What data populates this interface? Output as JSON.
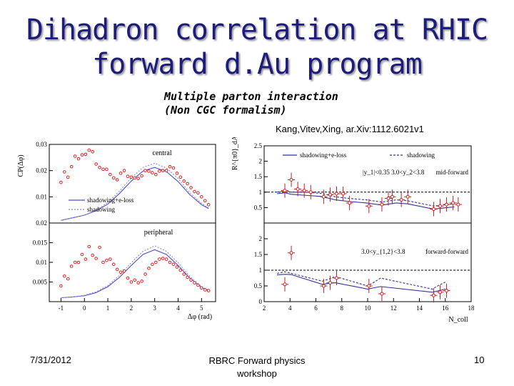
{
  "slide": {
    "title_line1": "Dihadron correlation at RHIC",
    "title_line2": "forward d.Au program",
    "subtitle_line1": "Multiple parton interaction",
    "subtitle_line2": "(Non CGC formalism)",
    "citation": "Kang,Vitev,Xing, ar.Xiv:1112.6021v1",
    "footer_date": "7/31/2012",
    "footer_line1": "RBRC Forward physics",
    "footer_line2": "workshop",
    "page_number": "10"
  },
  "chart_data": [
    {
      "type": "line",
      "ylabel": "CP(Δφ)",
      "xlabel": "Δφ (rad)",
      "x_ticks": [
        "-1",
        "0",
        "1",
        "2",
        "3",
        "4",
        "5"
      ],
      "xlim": [
        -1.5,
        5.6
      ],
      "panels": [
        {
          "label": "central",
          "ylim": [
            0,
            0.03
          ],
          "y_ticks": [
            "0.01",
            "0.02",
            "0.03"
          ],
          "series": [
            {
              "name": "shadowing+e-loss",
              "x": [
                -1.0,
                -0.5,
                0.0,
                0.5,
                1.0,
                1.5,
                2.0,
                2.5,
                3.0,
                3.5,
                4.0,
                4.5,
                5.0,
                5.3
              ],
              "values": [
                0.001,
                0.002,
                0.003,
                0.0047,
                0.0072,
                0.0113,
                0.016,
                0.0198,
                0.0212,
                0.0196,
                0.0158,
                0.0108,
                0.007,
                0.0055
              ]
            },
            {
              "name": "shadowing",
              "x": [
                -1.0,
                -0.5,
                0.0,
                0.5,
                1.0,
                1.5,
                2.0,
                2.5,
                3.0,
                3.5,
                4.0,
                4.5,
                5.0,
                5.3
              ],
              "values": [
                0.001,
                0.002,
                0.003,
                0.005,
                0.0078,
                0.0122,
                0.0172,
                0.0212,
                0.0228,
                0.021,
                0.017,
                0.0115,
                0.0075,
                0.0058
              ]
            },
            {
              "name": "data",
              "x": [
                -1.0,
                -0.85,
                -0.7,
                -0.55,
                -0.4,
                -0.25,
                -0.1,
                0.05,
                0.2,
                0.35,
                0.5,
                0.65,
                0.8,
                0.95,
                1.1,
                1.25,
                1.4,
                1.55,
                1.7,
                1.85,
                2.0,
                2.15,
                2.3,
                2.45,
                2.6,
                2.75,
                2.9,
                3.05,
                3.2,
                3.35,
                3.5,
                3.65,
                3.8,
                3.95,
                4.1,
                4.25,
                4.4,
                4.55,
                4.7,
                4.85,
                5.0,
                5.15,
                5.3
              ],
              "values": [
                0.0155,
                0.0195,
                0.0175,
                0.0215,
                0.0255,
                0.0245,
                0.026,
                0.0262,
                0.0278,
                0.0272,
                0.0225,
                0.0212,
                0.0205,
                0.0205,
                0.0185,
                0.0172,
                0.0165,
                0.019,
                0.02,
                0.0178,
                0.0175,
                0.0172,
                0.017,
                0.018,
                0.02,
                0.0198,
                0.0192,
                0.0185,
                0.0198,
                0.02,
                0.02,
                0.0215,
                0.021,
                0.019,
                0.0175,
                0.016,
                0.015,
                0.0135,
                0.012,
                0.0115,
                0.01,
                0.0085,
                0.007
              ]
            }
          ]
        },
        {
          "label": "peripheral",
          "ylim": [
            0,
            0.02
          ],
          "y_ticks": [
            "0.005",
            "0.01",
            "0.015",
            "0.02"
          ],
          "series": [
            {
              "name": "shadowing+e-loss",
              "x": [
                -1.0,
                -0.5,
                0.0,
                0.5,
                1.0,
                1.5,
                2.0,
                2.5,
                3.0,
                3.5,
                4.0,
                4.5,
                5.0,
                5.3
              ],
              "values": [
                0.001,
                0.0012,
                0.0015,
                0.0023,
                0.0038,
                0.0062,
                0.0092,
                0.012,
                0.0132,
                0.012,
                0.0092,
                0.006,
                0.0036,
                0.0028
              ]
            },
            {
              "name": "shadowing",
              "x": [
                -1.0,
                -0.5,
                0.0,
                0.5,
                1.0,
                1.5,
                2.0,
                2.5,
                3.0,
                3.5,
                4.0,
                4.5,
                5.0,
                5.3
              ],
              "values": [
                0.001,
                0.0012,
                0.0016,
                0.0025,
                0.0041,
                0.0067,
                0.0099,
                0.0128,
                0.0142,
                0.0128,
                0.0099,
                0.0064,
                0.0038,
                0.003
              ]
            },
            {
              "name": "data",
              "x": [
                -1.0,
                -0.85,
                -0.7,
                -0.55,
                -0.4,
                -0.25,
                -0.1,
                0.05,
                0.2,
                0.35,
                0.5,
                0.65,
                0.8,
                0.95,
                1.1,
                1.25,
                1.4,
                1.55,
                1.7,
                1.85,
                2.0,
                2.15,
                2.3,
                2.45,
                2.6,
                2.75,
                2.9,
                3.05,
                3.2,
                3.35,
                3.5,
                3.65,
                3.8,
                3.95,
                4.1,
                4.25,
                4.4,
                4.55,
                4.7,
                4.85,
                5.0,
                5.15,
                5.3
              ],
              "values": [
                0.004,
                0.0065,
                0.0058,
                0.009,
                0.01,
                0.01,
                0.012,
                0.0108,
                0.014,
                0.0118,
                0.011,
                0.0138,
                0.01,
                0.0105,
                0.0108,
                0.0095,
                0.0082,
                0.0075,
                0.0078,
                0.006,
                0.005,
                0.0055,
                0.0048,
                0.0052,
                0.007,
                0.0085,
                0.0095,
                0.01,
                0.0108,
                0.011,
                0.0108,
                0.01,
                0.0095,
                0.0088,
                0.008,
                0.007,
                0.0062,
                0.0055,
                0.0048,
                0.0042,
                0.0035,
                0.003,
                0.0028
              ]
            }
          ]
        }
      ]
    },
    {
      "type": "scatter",
      "ylabel": "R^{π0}_dA",
      "xlabel": "N_coll",
      "x_ticks": [
        "2",
        "4",
        "6",
        "8",
        "10",
        "12",
        "14",
        "16",
        "18"
      ],
      "xlim": [
        2,
        18
      ],
      "panels": [
        {
          "label": "mid-forward",
          "annotation": "|y_1|<0.35     3.0<y_2<3.8",
          "ylim": [
            0,
            2.5
          ],
          "y_ticks": [
            "0.5",
            "1",
            "1.5",
            "2",
            "2.5"
          ],
          "series": [
            {
              "name": "shadowing+e-loss",
              "x": [
                3.0,
                3.6,
                4.1,
                5.1,
                6.4,
                7.5,
                8.5,
                9.9,
                11.1,
                12.2,
                13.1,
                15.1,
                16.1,
                16.7
              ],
              "values": [
                0.95,
                0.98,
                0.93,
                0.9,
                0.86,
                0.75,
                0.7,
                0.65,
                0.58,
                0.65,
                0.62,
                0.45,
                0.5,
                0.52
              ]
            },
            {
              "name": "shadowing",
              "x": [
                3.0,
                3.6,
                4.1,
                5.1,
                6.4,
                7.5,
                8.5,
                9.9,
                11.1,
                12.2,
                13.1,
                15.1,
                16.1,
                16.7
              ],
              "values": [
                1.0,
                1.05,
                1.0,
                1.0,
                0.96,
                0.85,
                0.8,
                0.75,
                0.68,
                0.75,
                0.72,
                0.55,
                0.6,
                0.62
              ]
            },
            {
              "name": "data",
              "x": [
                3.6,
                4.1,
                4.6,
                5.1,
                5.6,
                6.6,
                7.1,
                7.6,
                8.1,
                8.6,
                10.1,
                11.1,
                11.6,
                11.9,
                12.6,
                13.1,
                15.1,
                15.6,
                16.1,
                16.6,
                17.0
              ],
              "values": [
                1.05,
                1.4,
                1.1,
                1.05,
                1.0,
                0.85,
                0.92,
                0.95,
                0.95,
                0.65,
                0.55,
                0.6,
                0.8,
                0.85,
                0.75,
                0.85,
                0.45,
                0.55,
                0.6,
                0.65,
                0.6
              ]
            }
          ]
        },
        {
          "label": "forward-forward",
          "annotation": "3.0<y_{1,2}<3.8",
          "ylim": [
            0,
            2.5
          ],
          "y_ticks": [
            "0",
            "0.5",
            "1",
            "1.5",
            "2"
          ],
          "series": [
            {
              "name": "shadowing+e-loss",
              "x": [
                3.0,
                3.6,
                4.1,
                6.5,
                7.0,
                7.5,
                10.0,
                10.5,
                11.0,
                15.0,
                15.5,
                16.0
              ],
              "values": [
                0.85,
                0.87,
                0.86,
                0.55,
                0.58,
                0.6,
                0.4,
                0.44,
                0.48,
                0.3,
                0.35,
                0.4
              ]
            },
            {
              "name": "shadowing",
              "x": [
                3.0,
                3.6,
                4.1,
                6.5,
                7.0,
                7.5,
                10.0,
                10.5,
                11.0,
                15.0,
                15.5,
                16.0
              ],
              "values": [
                0.9,
                0.95,
                0.9,
                0.65,
                0.72,
                0.8,
                0.5,
                0.62,
                0.75,
                0.4,
                0.52,
                0.62
              ]
            },
            {
              "name": "data",
              "x": [
                3.6,
                4.1,
                6.6,
                7.1,
                7.6,
                10.1,
                11.1,
                15.1,
                15.6,
                16.1
              ],
              "values": [
                0.55,
                1.55,
                0.5,
                0.6,
                0.75,
                0.5,
                0.25,
                0.2,
                0.3,
                0.35
              ]
            }
          ]
        }
      ]
    }
  ]
}
